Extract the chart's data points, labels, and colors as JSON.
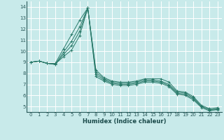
{
  "xlabel": "Humidex (Indice chaleur)",
  "bg_color": "#c8eaea",
  "grid_color": "#b8d8d8",
  "line_color": "#2a7a6a",
  "xlim": [
    -0.5,
    23.5
  ],
  "ylim": [
    4.5,
    14.5
  ],
  "xticks": [
    0,
    1,
    2,
    3,
    4,
    5,
    6,
    7,
    8,
    9,
    10,
    11,
    12,
    13,
    14,
    15,
    16,
    17,
    18,
    19,
    20,
    21,
    22,
    23
  ],
  "yticks": [
    5,
    6,
    7,
    8,
    9,
    10,
    11,
    12,
    13,
    14
  ],
  "series": [
    {
      "x": [
        0,
        1,
        2,
        3,
        4,
        5,
        6,
        7,
        8,
        9,
        10,
        11,
        12,
        13,
        14,
        15,
        16,
        17,
        18,
        19,
        20,
        21,
        22,
        23
      ],
      "y": [
        9.0,
        9.1,
        8.9,
        8.9,
        10.2,
        11.5,
        12.8,
        13.9,
        8.3,
        7.6,
        7.3,
        7.2,
        7.2,
        7.3,
        7.5,
        7.5,
        7.5,
        7.2,
        6.4,
        6.3,
        5.9,
        5.1,
        4.8,
        4.9
      ]
    },
    {
      "x": [
        0,
        1,
        2,
        3,
        4,
        5,
        6,
        7,
        8,
        9,
        10,
        11,
        12,
        13,
        14,
        15,
        16,
        17,
        18,
        19,
        20,
        21,
        22,
        23
      ],
      "y": [
        9.0,
        9.1,
        8.9,
        8.8,
        9.9,
        10.9,
        12.2,
        13.9,
        8.1,
        7.5,
        7.2,
        7.1,
        7.1,
        7.2,
        7.4,
        7.4,
        7.3,
        7.0,
        6.3,
        6.2,
        5.8,
        5.0,
        4.7,
        4.8
      ]
    },
    {
      "x": [
        0,
        1,
        2,
        3,
        4,
        5,
        6,
        7,
        8,
        9,
        10,
        11,
        12,
        13,
        14,
        15,
        16,
        17,
        18,
        19,
        20,
        21,
        22,
        23
      ],
      "y": [
        9.0,
        9.1,
        8.9,
        8.8,
        9.7,
        10.5,
        11.8,
        13.9,
        7.9,
        7.4,
        7.1,
        7.0,
        7.0,
        7.1,
        7.3,
        7.3,
        7.2,
        6.9,
        6.2,
        6.1,
        5.7,
        5.0,
        4.7,
        4.7
      ]
    },
    {
      "x": [
        0,
        1,
        2,
        3,
        4,
        5,
        6,
        7,
        8,
        9,
        10,
        11,
        12,
        13,
        14,
        15,
        16,
        17,
        18,
        19,
        20,
        21,
        22,
        23
      ],
      "y": [
        9.0,
        9.1,
        8.9,
        8.85,
        9.5,
        10.1,
        11.4,
        13.9,
        7.7,
        7.3,
        7.0,
        6.9,
        6.9,
        7.0,
        7.2,
        7.2,
        7.1,
        6.8,
        6.1,
        6.0,
        5.6,
        4.9,
        4.6,
        4.75
      ]
    }
  ]
}
